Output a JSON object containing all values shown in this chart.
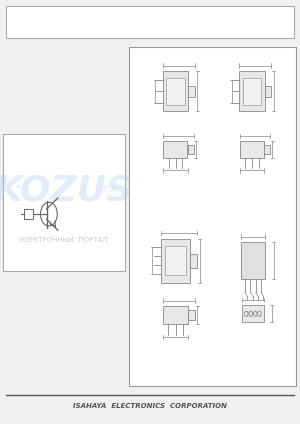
{
  "bg_color": "#f0f0f0",
  "page_bg": "#ffffff",
  "border_color": "#cccccc",
  "drawing_color": "#888888",
  "text_color": "#333333",
  "footer_text": "ISAHAYA  ELECTRONICS  CORPORATION",
  "footer_color": "#555555",
  "watermark_text_top": "KOZUS",
  "watermark_text_bottom": "ЭЛЕКТРОННЫЙ  ПОРТАЛ",
  "watermark_color": "#aaccee",
  "watermark_alpha": 0.35,
  "pck_color": "#888888"
}
